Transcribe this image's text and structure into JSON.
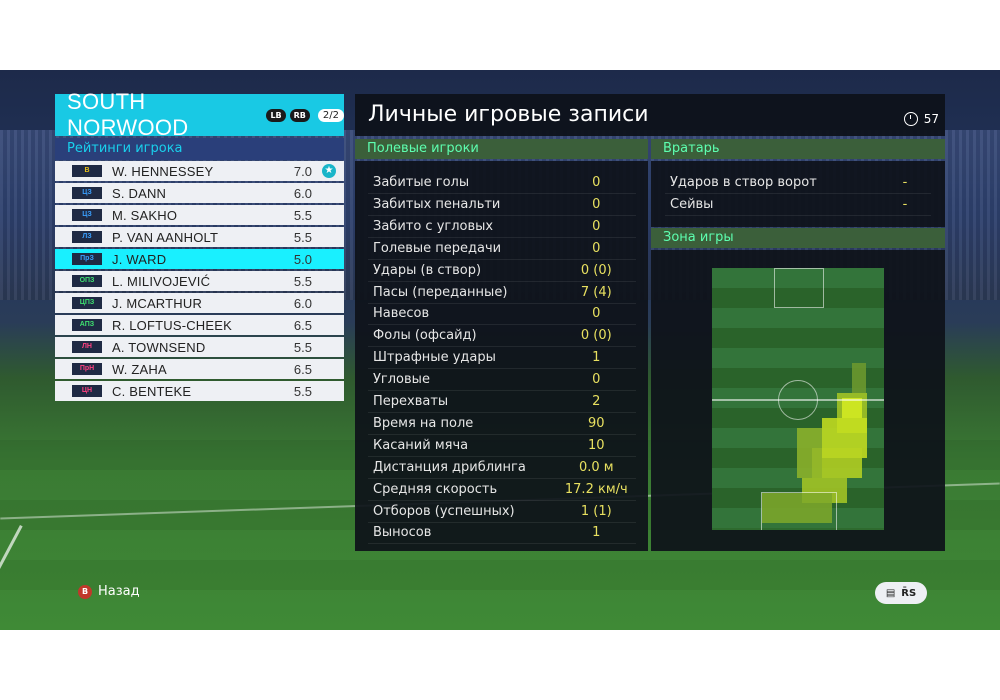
{
  "team": {
    "name": "SOUTH NORWOOD",
    "tag_left": "LB",
    "tag_right": "RB",
    "page": "2/2"
  },
  "ratings_header": "Рейтинги игрока",
  "players": [
    {
      "pos": "В",
      "name": "W. HENNESSEY",
      "rating": "7.0",
      "pos_color": "#e8c018",
      "star": true
    },
    {
      "pos": "ЦЗ",
      "name": "S. DANN",
      "rating": "6.0",
      "pos_color": "#3aa0ff"
    },
    {
      "pos": "ЦЗ",
      "name": "M. SAKHO",
      "rating": "5.5",
      "pos_color": "#3aa0ff"
    },
    {
      "pos": "ЛЗ",
      "name": "P. VAN AANHOLT",
      "rating": "5.5",
      "pos_color": "#3aa0ff"
    },
    {
      "pos": "ПрЗ",
      "name": "J. WARD",
      "rating": "5.0",
      "pos_color": "#3aa0ff"
    },
    {
      "pos": "ОПЗ",
      "name": "L. MILIVOJEVIĆ",
      "rating": "5.5",
      "pos_color": "#3fe070"
    },
    {
      "pos": "ЦПЗ",
      "name": "J. MCARTHUR",
      "rating": "6.0",
      "pos_color": "#3fe070"
    },
    {
      "pos": "АПЗ",
      "name": "R. LOFTUS-CHEEK",
      "rating": "6.5",
      "pos_color": "#3fe070"
    },
    {
      "pos": "ЛН",
      "name": "A. TOWNSEND",
      "rating": "5.5",
      "pos_color": "#ff4080"
    },
    {
      "pos": "ПрН",
      "name": "W. ZAHA",
      "rating": "6.5",
      "pos_color": "#ff4080"
    },
    {
      "pos": "ЦН",
      "name": "C. BENTEKE",
      "rating": "5.5",
      "pos_color": "#ff4080"
    }
  ],
  "main_title": "Личные игровые записи",
  "timer": "57",
  "field_section_title": "Полевые игроки",
  "field_stats": [
    {
      "label": "Забитые голы",
      "value": "0"
    },
    {
      "label": "Забитых пенальти",
      "value": "0"
    },
    {
      "label": "Забито с угловых",
      "value": "0"
    },
    {
      "label": "Голевые передачи",
      "value": "0"
    },
    {
      "label": "Удары (в створ)",
      "value": "0 (0)"
    },
    {
      "label": "Пасы (переданные)",
      "value": "7 (4)"
    },
    {
      "label": "Навесов",
      "value": "0"
    },
    {
      "label": "Фолы (офсайд)",
      "value": "0 (0)"
    },
    {
      "label": "Штрафные удары",
      "value": "1"
    },
    {
      "label": "Угловые",
      "value": "0"
    },
    {
      "label": "Перехваты",
      "value": "2"
    },
    {
      "label": "Время на поле",
      "value": "90"
    },
    {
      "label": "Касаний мяча",
      "value": "10"
    },
    {
      "label": "Дистанция дриблинга",
      "value": "0.0 м"
    },
    {
      "label": "Средняя скорость",
      "value": "17.2 км/ч"
    },
    {
      "label": "Отборов (успешных)",
      "value": "1 (1)"
    },
    {
      "label": "Выносов",
      "value": "1"
    }
  ],
  "gk_section_title": "Вратарь",
  "gk_stats": [
    {
      "label": "Ударов в створ ворот",
      "value": "-"
    },
    {
      "label": "Сейвы",
      "value": "-"
    }
  ],
  "zone_section_title": "Зона игры",
  "footer": {
    "back_label": "Назад",
    "back_button_icon": "B",
    "right_button_glyph": "R̄S"
  },
  "colors": {
    "team_bar": "#19c9e4",
    "selected_row": "#19f0ff",
    "section_header_text": "#5dffb0",
    "value_text": "#e8e060",
    "heat_high": "#c8e020"
  }
}
